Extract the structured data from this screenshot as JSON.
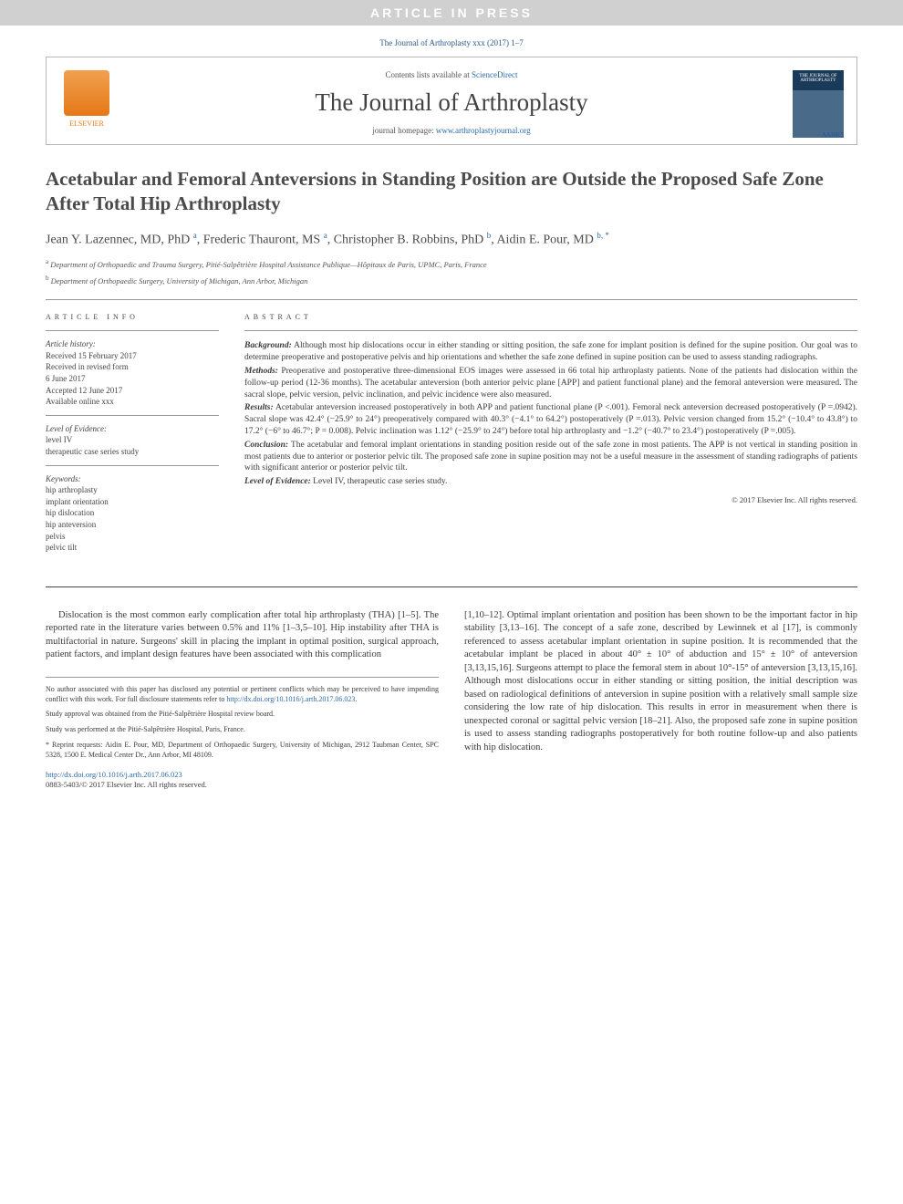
{
  "banner": "ARTICLE IN PRESS",
  "citation": "The Journal of Arthroplasty xxx (2017) 1–7",
  "masthead": {
    "contents_prefix": "Contents lists available at ",
    "contents_link": "ScienceDirect",
    "journal_title": "The Journal of Arthroplasty",
    "homepage_prefix": "journal homepage: ",
    "homepage_url": "www.arthroplastyjournal.org",
    "publisher": "ELSEVIER",
    "cover_label": "THE JOURNAL OF ARTHROPLASTY",
    "aahks": "AAHKS"
  },
  "title": "Acetabular and Femoral Anteversions in Standing Position are Outside the Proposed Safe Zone After Total Hip Arthroplasty",
  "authors_html": "Jean Y. Lazennec, MD, PhD <sup>a</sup>, Frederic Thauront, MS <sup>a</sup>, Christopher B. Robbins, PhD <sup>b</sup>, Aidin E. Pour, MD <sup>b, *</sup>",
  "affiliations": [
    "a Department of Orthopaedic and Trauma Surgery, Pitié-Salpêtrière Hospital Assistance Publique—Hôpitaux de Paris, UPMC, Paris, France",
    "b Department of Orthopaedic Surgery, University of Michigan, Ann Arbor, Michigan"
  ],
  "info": {
    "header": "ARTICLE INFO",
    "history_label": "Article history:",
    "history": [
      "Received 15 February 2017",
      "Received in revised form",
      "6 June 2017",
      "Accepted 12 June 2017",
      "Available online xxx"
    ],
    "evidence_label": "Level of Evidence:",
    "evidence": [
      "level IV",
      "therapeutic case series study"
    ],
    "keywords_label": "Keywords:",
    "keywords": [
      "hip arthroplasty",
      "implant orientation",
      "hip dislocation",
      "hip anteversion",
      "pelvis",
      "pelvic tilt"
    ]
  },
  "abstract": {
    "header": "ABSTRACT",
    "background_label": "Background:",
    "background": "Although most hip dislocations occur in either standing or sitting position, the safe zone for implant position is defined for the supine position. Our goal was to determine preoperative and postoperative pelvis and hip orientations and whether the safe zone defined in supine position can be used to assess standing radiographs.",
    "methods_label": "Methods:",
    "methods": "Preoperative and postoperative three-dimensional EOS images were assessed in 66 total hip arthroplasty patients. None of the patients had dislocation within the follow-up period (12-36 months). The acetabular anteversion (both anterior pelvic plane [APP] and patient functional plane) and the femoral anteversion were measured. The sacral slope, pelvic version, pelvic inclination, and pelvic incidence were also measured.",
    "results_label": "Results:",
    "results": "Acetabular anteversion increased postoperatively in both APP and patient functional plane (P <.001). Femoral neck anteversion decreased postoperatively (P =.0942). Sacral slope was 42.4° (−25.9° to 24°) preoperatively compared with 40.3° (−4.1° to 64.2°) postoperatively (P =.013). Pelvic version changed from 15.2° (−10.4° to 43.8°) to 17.2° (−6° to 46.7°; P = 0.008). Pelvic inclination was 1.12° (−25.9° to 24°) before total hip arthroplasty and −1.2° (−40.7° to 23.4°) postoperatively (P =.005).",
    "conclusion_label": "Conclusion:",
    "conclusion": "The acetabular and femoral implant orientations in standing position reside out of the safe zone in most patients. The APP is not vertical in standing position in most patients due to anterior or posterior pelvic tilt. The proposed safe zone in supine position may not be a useful measure in the assessment of standing radiographs of patients with significant anterior or posterior pelvic tilt.",
    "loe_label": "Level of Evidence:",
    "loe": "Level IV, therapeutic case series study.",
    "copyright": "© 2017 Elsevier Inc. All rights reserved."
  },
  "body": {
    "col1": "Dislocation is the most common early complication after total hip arthroplasty (THA) [1–5]. The reported rate in the literature varies between 0.5% and 11% [1–3,5–10]. Hip instability after THA is multifactorial in nature. Surgeons' skill in placing the implant in optimal position, surgical approach, patient factors, and implant design features have been associated with this complication",
    "col2": "[1,10–12]. Optimal implant orientation and position has been shown to be the important factor in hip stability [3,13–16]. The concept of a safe zone, described by Lewinnek et al [17], is commonly referenced to assess acetabular implant orientation in supine position. It is recommended that the acetabular implant be placed in about 40° ± 10° of abduction and 15° ± 10° of anteversion [3,13,15,16]. Surgeons attempt to place the femoral stem in about 10°-15° of anteversion [3,13,15,16]. Although most dislocations occur in either standing or sitting position, the initial description was based on radiological definitions of anteversion in supine position with a relatively small sample size considering the low rate of hip dislocation. This results in error in measurement when there is unexpected coronal or sagittal pelvic version [18–21]. Also, the proposed safe zone in supine position is used to assess standing radiographs postoperatively for both routine follow-up and also patients with hip dislocation."
  },
  "footnotes": {
    "conflict": "No author associated with this paper has disclosed any potential or pertinent conflicts which may be perceived to have impending conflict with this work. For full disclosure statements refer to ",
    "conflict_link": "http://dx.doi.org/10.1016/j.arth.2017.06.023",
    "approval": "Study approval was obtained from the Pitié-Salpêtrière Hospital review board.",
    "performed": "Study was performed at the Pitié-Salpêtrière Hospital, Paris, France.",
    "reprint": "* Reprint requests: Aidin E. Pour, MD, Department of Orthopaedic Surgery, University of Michigan, 2912 Taubman Center, SPC 5328, 1500 E. Medical Center Dr., Ann Arbor, MI 48109."
  },
  "doi": {
    "link": "http://dx.doi.org/10.1016/j.arth.2017.06.023",
    "issn": "0883-5403/© 2017 Elsevier Inc. All rights reserved."
  }
}
